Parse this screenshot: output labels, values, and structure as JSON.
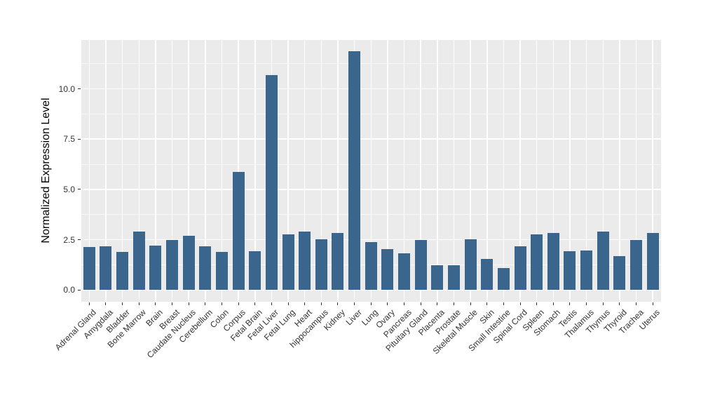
{
  "chart_data": {
    "type": "bar",
    "title": "",
    "xlabel": "",
    "ylabel": "Normalized Expression Level",
    "categories": [
      "Adrenal Gland",
      "Amygdala",
      "Bladder",
      "Bone Marrow",
      "Brain",
      "Breast",
      "Caudate Nucleus",
      "Cerebellum",
      "Colon",
      "Corpus",
      "Fetal Brain",
      "Fetal Liver",
      "Fetal Lung",
      "Heart",
      "hippocampus",
      "Kidney",
      "Liver",
      "Lung",
      "Ovary",
      "Pancreas",
      "Pituitary Gland",
      "Placenta",
      "Prostate",
      "Skeletal Muscle",
      "Skin",
      "Small Intestine",
      "Spinal Cord",
      "Spleen",
      "Stomach",
      "Testis",
      "Thalamus",
      "Thymus",
      "Thyroid",
      "Trachea",
      "Uterus"
    ],
    "values": [
      2.15,
      2.17,
      1.89,
      2.91,
      2.21,
      2.49,
      2.7,
      2.16,
      1.91,
      5.86,
      1.92,
      10.67,
      2.76,
      2.91,
      2.52,
      2.84,
      11.85,
      2.38,
      2.03,
      1.83,
      2.49,
      1.23,
      1.23,
      2.51,
      1.54,
      1.1,
      2.18,
      2.76,
      2.85,
      1.92,
      1.96,
      2.91,
      1.68,
      2.49,
      2.84
    ],
    "ylim": [
      -0.59,
      12.44
    ],
    "yticks": {
      "values": [
        0,
        2.5,
        5,
        7.5,
        10
      ],
      "labels": [
        "0.0",
        "2.5",
        "5.0",
        "7.5",
        "10.0"
      ]
    },
    "yminor": [
      1.25,
      3.75,
      6.25,
      8.75,
      11.25
    ],
    "grid": "on",
    "legend": "none",
    "colors": {
      "bar": "#3A658C",
      "panel_bg": "#EBEBEB",
      "grid_major": "#FFFFFF",
      "grid_minor": "#F5F5F5",
      "tick_text": "#333333",
      "axis_title": "#000000"
    }
  }
}
